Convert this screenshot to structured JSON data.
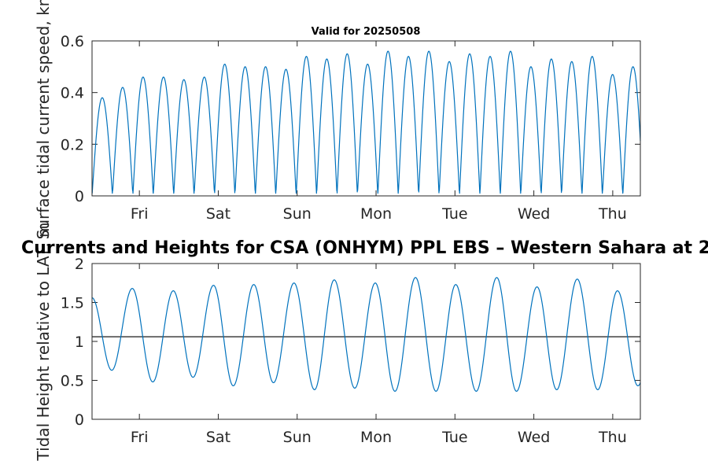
{
  "colors": {
    "series": "#0072bd",
    "axis": "#262626",
    "reference_line": "#000000"
  },
  "chart_data": [
    {
      "type": "line",
      "title": "Valid for 20250508",
      "ylabel": "Surface tidal current speed, kn",
      "xlabel": "",
      "x_unit": "days",
      "xlim": [
        0,
        6.95
      ],
      "ylim": [
        0,
        0.6
      ],
      "yticks": [
        0,
        0.2,
        0.4,
        0.6
      ],
      "ytick_labels": [
        "0",
        "0.2",
        "0.4",
        "0.6"
      ],
      "xticks": [
        0.6,
        1.6,
        2.6,
        3.6,
        4.6,
        5.6,
        6.6
      ],
      "xtick_labels": [
        "Fri",
        "Sat",
        "Sun",
        "Mon",
        "Tue",
        "Wed",
        "Thu"
      ],
      "grid": false,
      "series": [
        {
          "semidiurnal_period_days": 0.5175,
          "first_slack_day": 0.0,
          "peak_speeds": [
            0.38,
            0.42,
            0.46,
            0.46,
            0.45,
            0.46,
            0.51,
            0.5,
            0.5,
            0.49,
            0.54,
            0.53,
            0.55,
            0.51,
            0.56,
            0.54,
            0.56,
            0.52,
            0.55,
            0.54,
            0.56,
            0.5,
            0.53,
            0.52,
            0.54,
            0.47,
            0.5,
            0.47
          ],
          "slack_speeds": [
            0.01,
            0.02,
            0.01,
            0.02,
            0.01,
            0.02,
            0.01,
            0.02,
            0.01,
            0.02,
            0.01,
            0.02,
            0.01,
            0.02,
            0.01,
            0.02,
            0.01,
            0.02,
            0.01,
            0.02,
            0.01,
            0.02,
            0.01,
            0.02,
            0.01,
            0.02,
            0.01,
            0.02,
            0.01
          ]
        }
      ]
    },
    {
      "type": "line",
      "title": "Currents and Heights for CSA (ONHYM) PPL EBS  – Western Sahara at 2",
      "ylabel": "Tidal Height relative to LAT, m",
      "xlabel": "",
      "x_unit": "days",
      "xlim": [
        0,
        6.95
      ],
      "ylim": [
        0,
        2
      ],
      "yticks": [
        0,
        0.5,
        1,
        1.5,
        2
      ],
      "ytick_labels": [
        "0",
        "0.5",
        "1",
        "1.5",
        "2"
      ],
      "xticks": [
        0.6,
        1.6,
        2.6,
        3.6,
        4.6,
        5.6,
        6.6
      ],
      "xtick_labels": [
        "Fri",
        "Sat",
        "Sun",
        "Mon",
        "Tue",
        "Wed",
        "Thu"
      ],
      "grid": false,
      "reference_line_y": 1.06,
      "series": [
        {
          "extremes": [
            [
              0.0,
              1.56
            ],
            [
              0.25,
              0.63
            ],
            [
              0.51,
              1.68
            ],
            [
              0.77,
              0.48
            ],
            [
              1.03,
              1.65
            ],
            [
              1.28,
              0.54
            ],
            [
              1.54,
              1.72
            ],
            [
              1.79,
              0.43
            ],
            [
              2.05,
              1.73
            ],
            [
              2.3,
              0.47
            ],
            [
              2.56,
              1.75
            ],
            [
              2.82,
              0.38
            ],
            [
              3.07,
              1.79
            ],
            [
              3.33,
              0.4
            ],
            [
              3.59,
              1.75
            ],
            [
              3.84,
              0.36
            ],
            [
              4.1,
              1.82
            ],
            [
              4.36,
              0.36
            ],
            [
              4.61,
              1.73
            ],
            [
              4.87,
              0.36
            ],
            [
              5.13,
              1.82
            ],
            [
              5.38,
              0.36
            ],
            [
              5.64,
              1.7
            ],
            [
              5.89,
              0.38
            ],
            [
              6.15,
              1.8
            ],
            [
              6.41,
              0.38
            ],
            [
              6.66,
              1.65
            ],
            [
              6.92,
              0.43
            ],
            [
              7.17,
              1.6
            ]
          ]
        }
      ]
    }
  ]
}
